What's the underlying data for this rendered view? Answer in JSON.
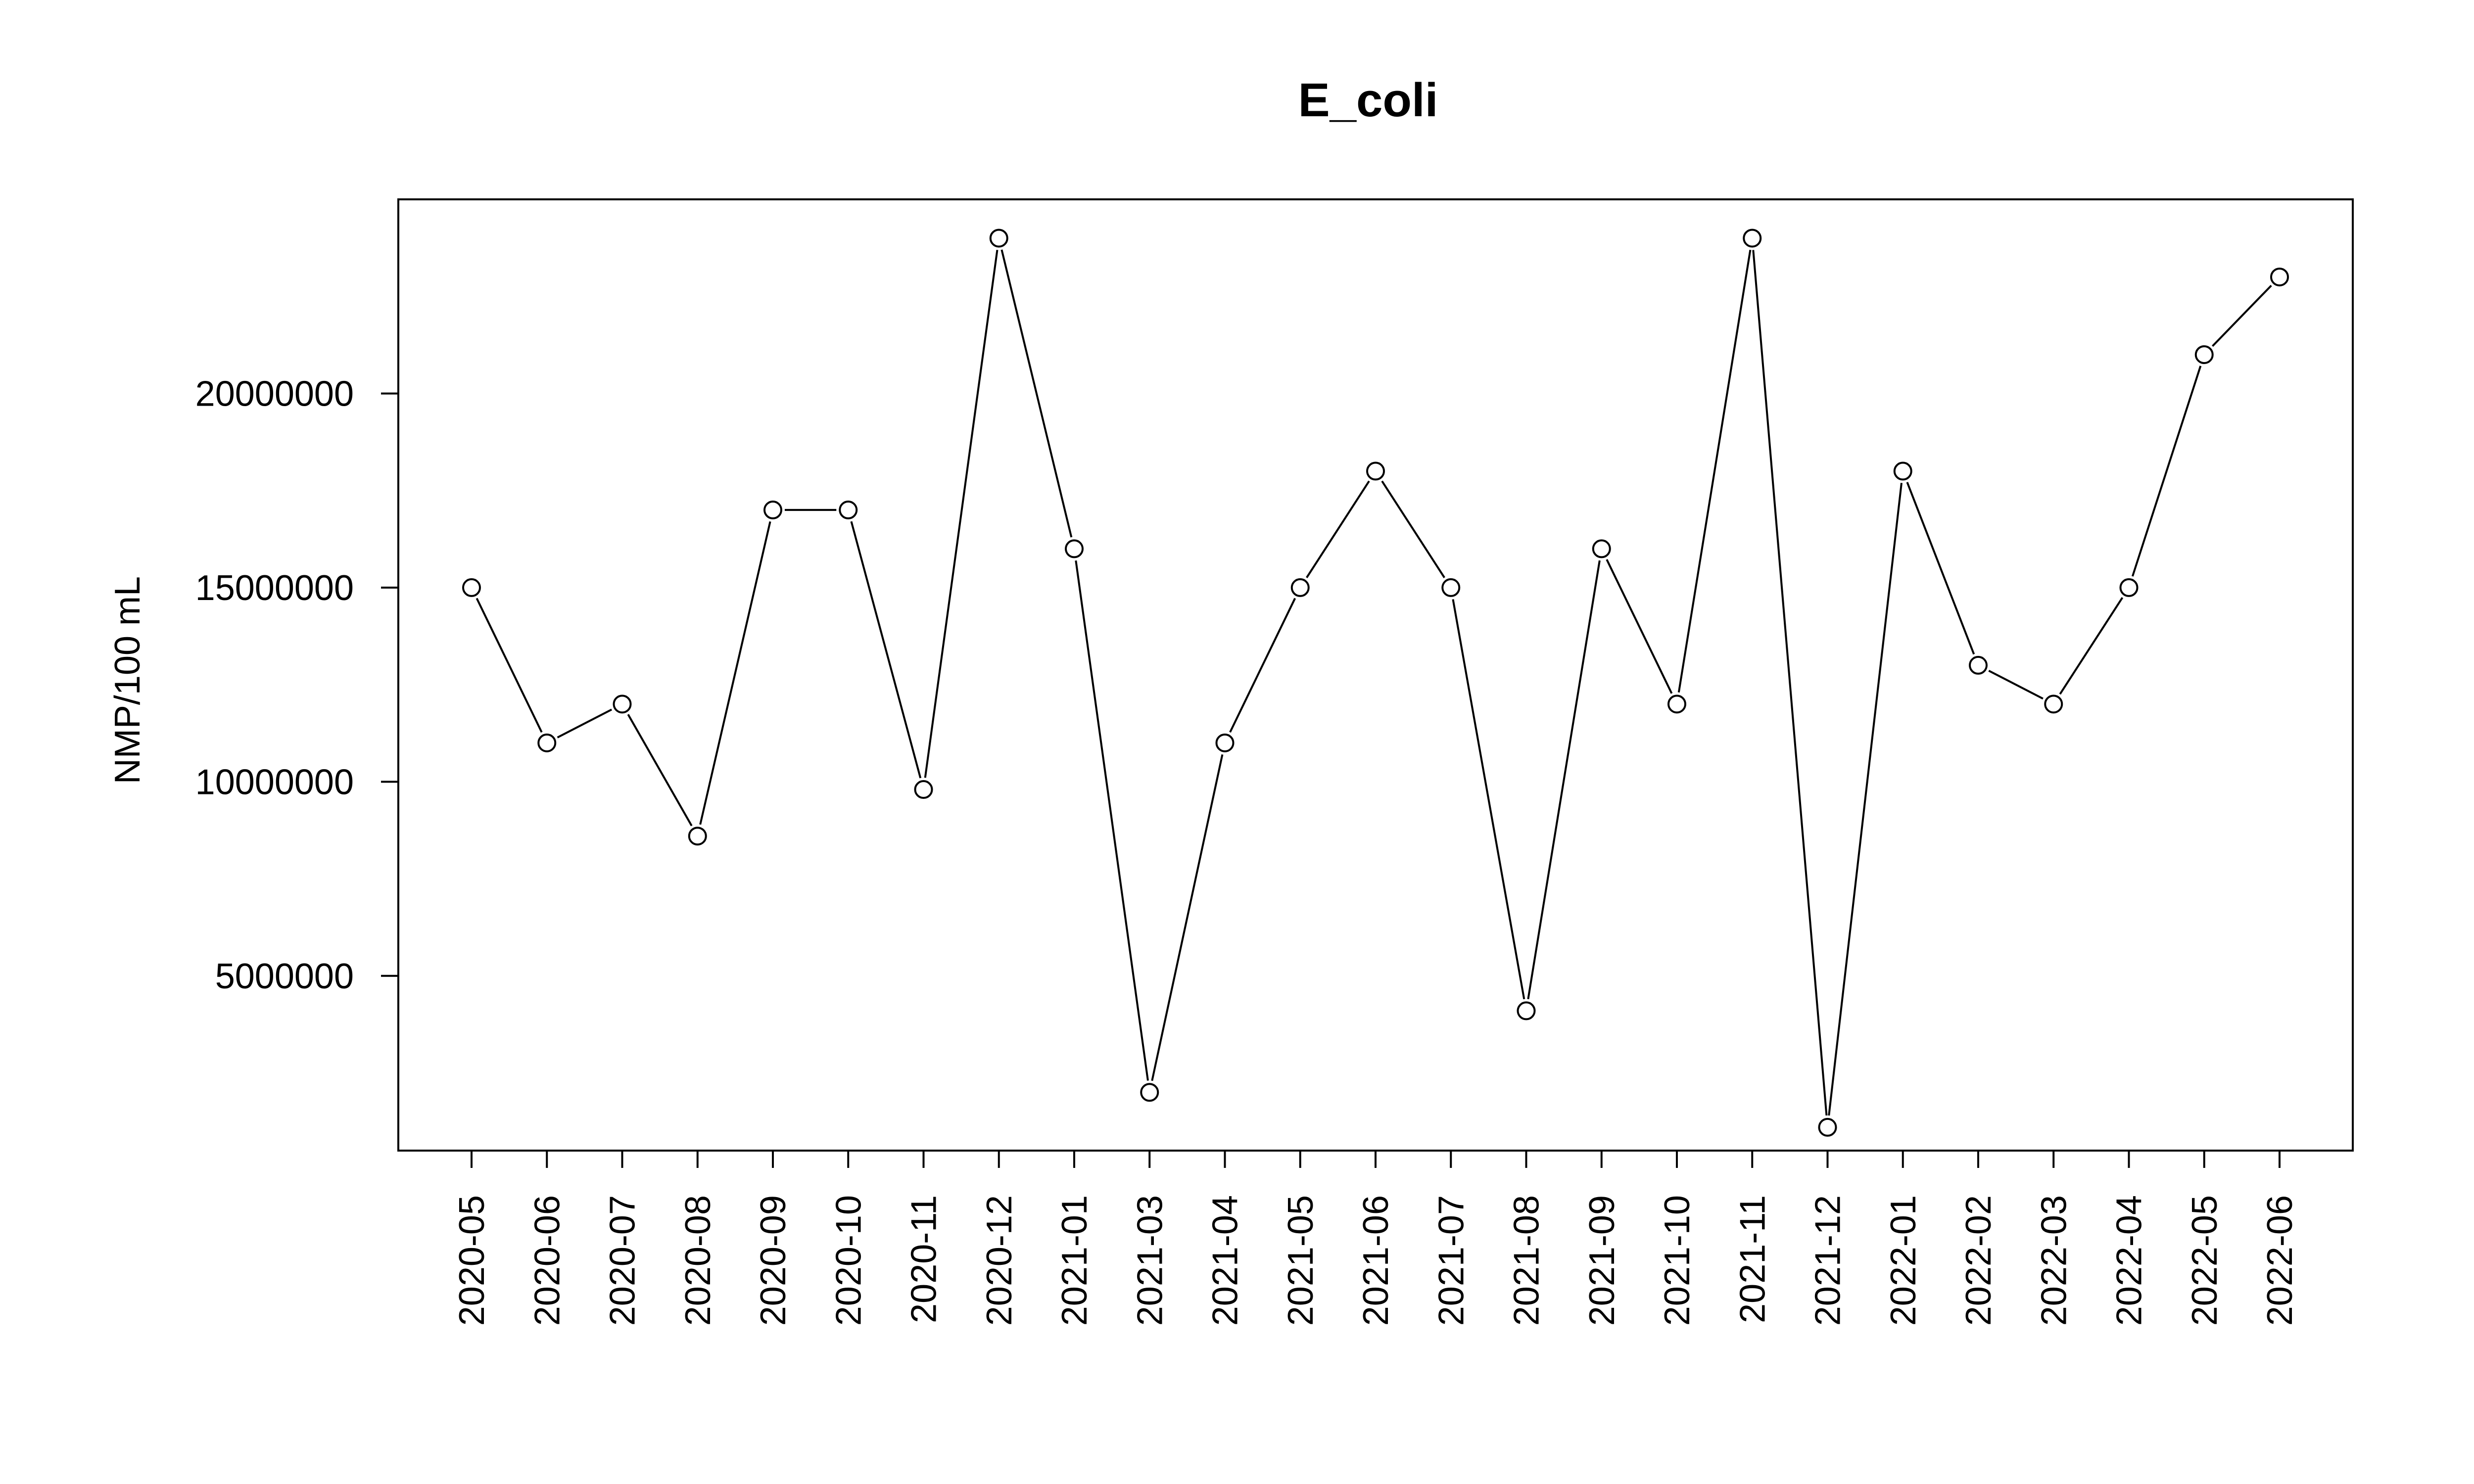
{
  "chart_data": {
    "type": "line",
    "title": "E_coli",
    "xlabel": "",
    "ylabel": "NMP/100 mL",
    "categories": [
      "2020-05",
      "2020-06",
      "2020-07",
      "2020-08",
      "2020-09",
      "2020-10",
      "2020-11",
      "2020-12",
      "2021-01",
      "2021-03",
      "2021-04",
      "2021-05",
      "2021-06",
      "2021-07",
      "2021-08",
      "2021-09",
      "2021-10",
      "2021-11",
      "2021-12",
      "2022-01",
      "2022-02",
      "2022-03",
      "2022-04",
      "2022-05",
      "2022-06"
    ],
    "series": [
      {
        "values": [
          15000000,
          11000000,
          12000000,
          8600000,
          17000000,
          17000000,
          9800000,
          24000000,
          16000000,
          2000000,
          11000000,
          15000000,
          18000000,
          15000000,
          4100000,
          16000000,
          12000000,
          24000000,
          1100000,
          18000000,
          13000000,
          12000000,
          15000000,
          21000000,
          23000000
        ]
      }
    ],
    "yticks": [
      "5000000",
      "10000000",
      "15000000",
      "20000000"
    ],
    "ylim": [
      500000,
      25000000
    ],
    "grid": false,
    "legend": "none",
    "marker": "open-circle",
    "line_color": "#000000"
  }
}
